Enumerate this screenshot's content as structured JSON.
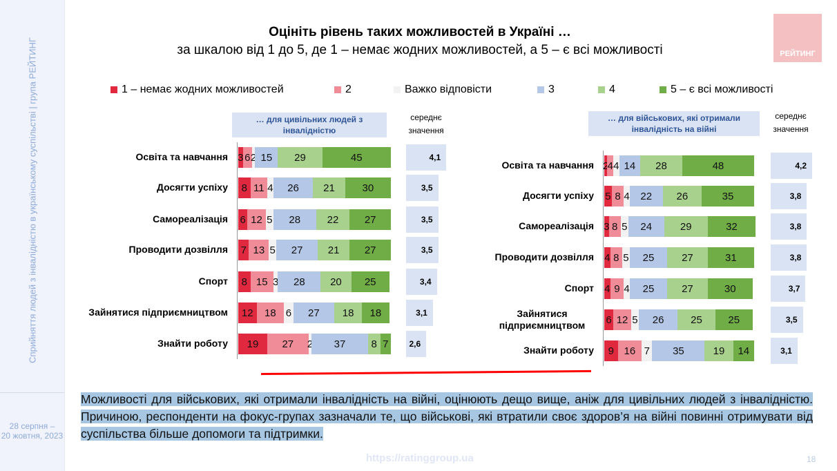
{
  "sidebar": {
    "vertical_text": "Сприйняття людей з інвалідністю в українському суспільстві | група РЕЙТИНГ",
    "date": "28 серпня –\n20 жовтня, 2023"
  },
  "logo": {
    "text": "РЕЙТИНГ",
    "color": "#f4c0c2"
  },
  "header": {
    "title": "Оцініть рівень таких можливостей в Україні …",
    "subtitle": "за шкалою від 1 до 5, де 1 – немає жодних можливостей, а 5 – є всі можливості"
  },
  "legend": [
    {
      "label": "1 – немає жодних можливостей",
      "color": "#e0293f"
    },
    {
      "label": "2",
      "color": "#ef8c98"
    },
    {
      "label": "Важко відповісти",
      "color": "#f2f2f2"
    },
    {
      "label": "3",
      "color": "#b4c7e7"
    },
    {
      "label": "4",
      "color": "#a9d18e"
    },
    {
      "label": "5 – є всі можливості",
      "color": "#70ad47"
    }
  ],
  "chart_data": [
    {
      "type": "bar",
      "stacked": true,
      "orientation": "horizontal",
      "title": "… для цивільних людей з інвалідністю",
      "mean_label": "середнє значення",
      "categories": [
        "Освіта та навчання",
        "Досягти успіху",
        "Самореалізація",
        "Проводити дозвілля",
        "Спорт",
        "Зайнятися підприємництвом",
        "Знайти роботу"
      ],
      "series": [
        {
          "name": "1 – немає жодних можливостей",
          "values": [
            3,
            8,
            6,
            7,
            8,
            12,
            19
          ]
        },
        {
          "name": "2",
          "values": [
            6,
            11,
            12,
            13,
            15,
            18,
            27
          ]
        },
        {
          "name": "Важко відповісти",
          "values": [
            2,
            4,
            5,
            5,
            3,
            6,
            2
          ]
        },
        {
          "name": "3",
          "values": [
            15,
            26,
            28,
            27,
            28,
            27,
            37
          ]
        },
        {
          "name": "4",
          "values": [
            29,
            21,
            22,
            21,
            20,
            18,
            8
          ]
        },
        {
          "name": "5 – є всі можливості",
          "values": [
            45,
            30,
            27,
            27,
            25,
            18,
            7
          ]
        }
      ],
      "means": [
        "4,1",
        "3,5",
        "3,5",
        "3,5",
        "3,4",
        "3,1",
        "2,6"
      ]
    },
    {
      "type": "bar",
      "stacked": true,
      "orientation": "horizontal",
      "title": "… для військових, які отримали інвалідність на війні",
      "mean_label": "середнє значення",
      "categories": [
        "Освіта та навчання",
        "Досягти успіху",
        "Самореалізація",
        "Проводити дозвілля",
        "Спорт",
        "Зайнятися підприємництвом",
        "Знайти роботу"
      ],
      "series": [
        {
          "name": "1 – немає жодних можливостей",
          "values": [
            2,
            5,
            3,
            4,
            4,
            6,
            9
          ]
        },
        {
          "name": "2",
          "values": [
            4,
            8,
            8,
            8,
            9,
            12,
            16
          ]
        },
        {
          "name": "Важко відповісти",
          "values": [
            4,
            4,
            5,
            5,
            4,
            5,
            7
          ]
        },
        {
          "name": "3",
          "values": [
            14,
            22,
            24,
            25,
            25,
            26,
            35
          ]
        },
        {
          "name": "4",
          "values": [
            28,
            26,
            29,
            27,
            27,
            25,
            19
          ]
        },
        {
          "name": "5 – є всі можливості",
          "values": [
            48,
            35,
            32,
            31,
            30,
            25,
            14
          ]
        }
      ],
      "means": [
        "4,2",
        "3,8",
        "3,8",
        "3,8",
        "3,7",
        "3,5",
        "3,1"
      ]
    }
  ],
  "summary": "Можливості для військових, які отримали інвалідність на війні, оцінюють дещо вище, аніж для цивільних людей з інвалідністю. Причиною, респонденти на фокус-групах зазначали те, що військові, які втратили своє здоров’я на війні повинні отримувати від суспільства більше допомоги та підтримки.",
  "footer": {
    "url": "https://ratinggroup.ua",
    "page": "18"
  }
}
